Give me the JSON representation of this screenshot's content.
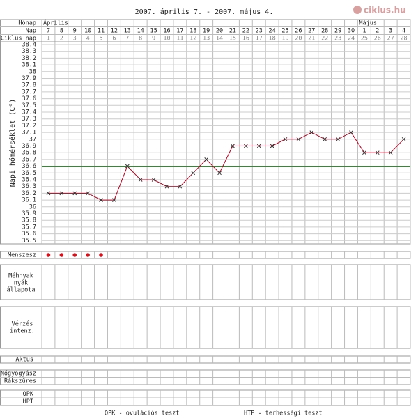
{
  "chart_data": {
    "type": "line",
    "title": "2007. április 7. - 2007. május 4.",
    "logo": "ciklus.hu",
    "y_label": "Napi hőmérséklet (C°)",
    "row_labels": {
      "month": "Hónap",
      "day": "Nap",
      "cycle_day": "Ciklus nap",
      "menstruation": "Menszesz",
      "mucus": [
        "Méhnyak",
        "nyák",
        "állapota"
      ],
      "bleeding": [
        "Vérzés",
        "intenz."
      ],
      "intercourse": "Aktus",
      "gyn": [
        "Nőgyógyász",
        "Rákszűrés"
      ],
      "tests": [
        "OPK",
        "HPT"
      ]
    },
    "month_labels": [
      "Április",
      null,
      null,
      null,
      null,
      null,
      null,
      null,
      null,
      null,
      null,
      null,
      null,
      null,
      null,
      null,
      null,
      null,
      null,
      null,
      null,
      null,
      null,
      null,
      "Május",
      null,
      null,
      null
    ],
    "categories": [
      7,
      8,
      9,
      10,
      11,
      12,
      13,
      14,
      15,
      16,
      17,
      18,
      19,
      20,
      21,
      22,
      23,
      24,
      25,
      26,
      27,
      28,
      29,
      30,
      1,
      2,
      3,
      4
    ],
    "cycle_days": [
      1,
      2,
      3,
      4,
      5,
      6,
      7,
      8,
      9,
      10,
      11,
      12,
      13,
      14,
      15,
      16,
      17,
      18,
      19,
      20,
      21,
      22,
      23,
      24,
      25,
      26,
      27,
      28
    ],
    "values": [
      36.2,
      36.2,
      36.2,
      36.2,
      36.1,
      36.1,
      36.6,
      36.4,
      36.4,
      36.3,
      36.3,
      36.5,
      36.7,
      36.5,
      36.9,
      36.9,
      36.9,
      36.9,
      37.0,
      37.0,
      37.1,
      37.0,
      37.0,
      37.1,
      36.8,
      36.8,
      36.8,
      37.0
    ],
    "color": "#b0001e",
    "cover_line": 36.6,
    "cover_color": "#2e8b2e",
    "menstruation": [
      true,
      true,
      true,
      true,
      true,
      false,
      false,
      false,
      false,
      false,
      false,
      false,
      false,
      false,
      false,
      false,
      false,
      false,
      false,
      false,
      false,
      false,
      false,
      false,
      false,
      false,
      false,
      false
    ],
    "menstruation_color": "#d0141e",
    "ylim": [
      35.5,
      38.4
    ],
    "yticks": [
      35.5,
      35.6,
      35.7,
      35.8,
      35.9,
      36,
      36.1,
      36.2,
      36.3,
      36.4,
      36.5,
      36.6,
      36.7,
      36.8,
      36.9,
      37,
      37.1,
      37.2,
      37.3,
      37.4,
      37.5,
      37.6,
      37.7,
      37.8,
      37.9,
      38,
      38.1,
      38.2,
      38.3,
      38.4
    ],
    "grid": true,
    "footer": [
      "OPK - ovulációs teszt",
      "HTP - terhességi teszt"
    ]
  }
}
